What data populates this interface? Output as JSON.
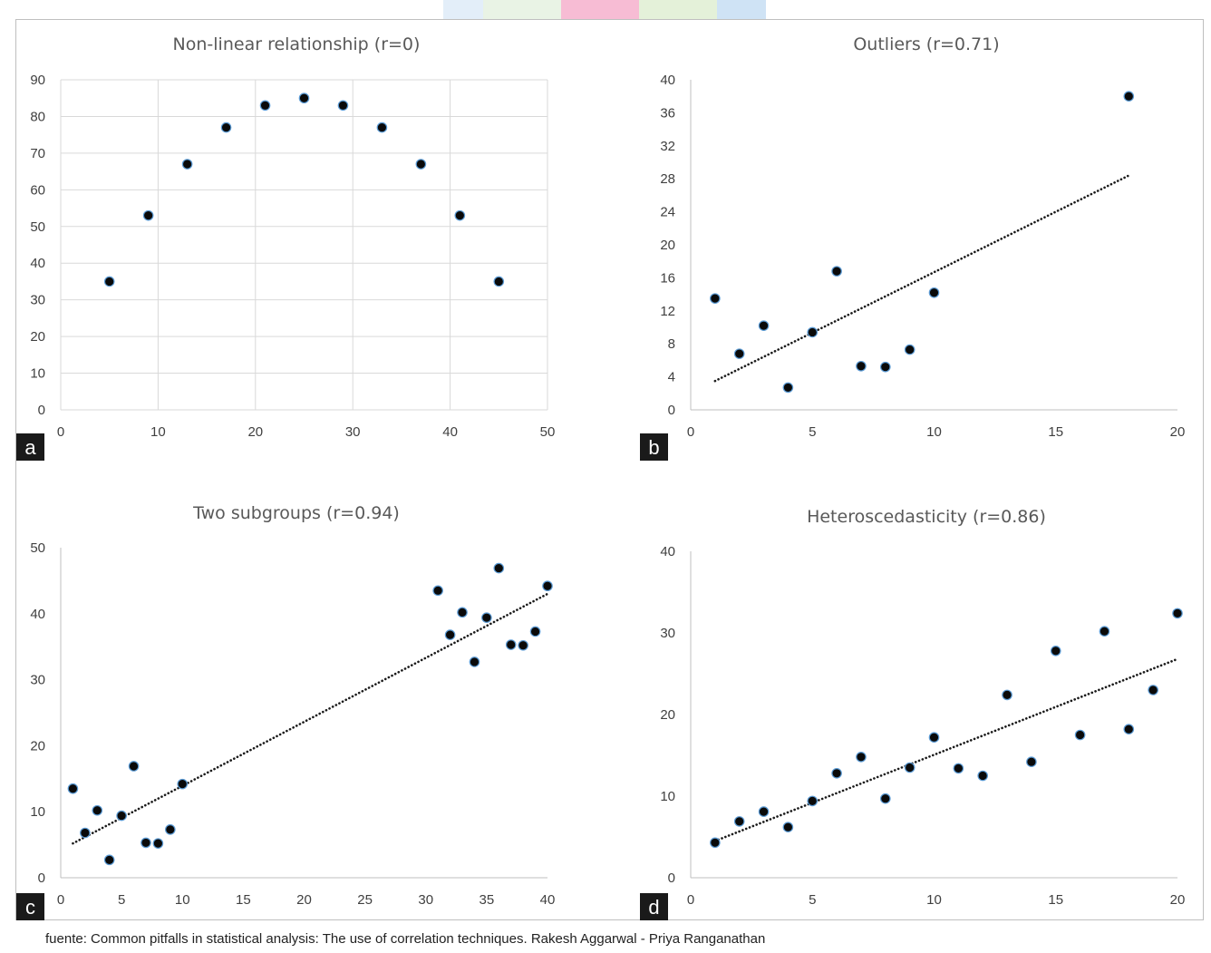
{
  "header_strip_colors": [
    "#e3eef9",
    "#e9f3e5",
    "#f7bcd4",
    "#e4f1d9",
    "#cfe3f5"
  ],
  "chart_data": [
    {
      "type": "scatter",
      "label": "a",
      "title": "Non-linear relationship (r=0)",
      "xlim": [
        0,
        50
      ],
      "ylim": [
        0,
        90
      ],
      "xticks": [
        0,
        10,
        20,
        30,
        40,
        50
      ],
      "yticks": [
        0,
        10,
        20,
        30,
        40,
        50,
        60,
        70,
        80,
        90
      ],
      "grid": true,
      "trendline": null,
      "points": [
        [
          5,
          35
        ],
        [
          9,
          53
        ],
        [
          13,
          67
        ],
        [
          17,
          77
        ],
        [
          21,
          83
        ],
        [
          25,
          85
        ],
        [
          29,
          83
        ],
        [
          33,
          77
        ],
        [
          37,
          67
        ],
        [
          41,
          53
        ],
        [
          45,
          35
        ]
      ]
    },
    {
      "type": "scatter",
      "label": "b",
      "title": "Outliers (r=0.71)",
      "xlim": [
        0,
        20
      ],
      "ylim": [
        0,
        40
      ],
      "xticks": [
        0,
        5,
        10,
        15,
        20
      ],
      "yticks": [
        0,
        4,
        8,
        12,
        16,
        20,
        24,
        28,
        32,
        36,
        40
      ],
      "grid": false,
      "trendline": {
        "style": "dotted",
        "x": [
          1,
          18
        ],
        "y": [
          3.5,
          28.4
        ]
      },
      "points": [
        [
          1,
          13.5
        ],
        [
          2,
          6.8
        ],
        [
          3,
          10.2
        ],
        [
          4,
          2.7
        ],
        [
          5,
          9.4
        ],
        [
          6,
          16.8
        ],
        [
          7,
          5.3
        ],
        [
          8,
          5.2
        ],
        [
          9,
          7.3
        ],
        [
          10,
          14.2
        ],
        [
          18,
          38
        ]
      ]
    },
    {
      "type": "scatter",
      "label": "c",
      "title": "Two subgroups (r=0.94)",
      "xlim": [
        0,
        40
      ],
      "ylim": [
        0,
        50
      ],
      "xticks": [
        0,
        5,
        10,
        15,
        20,
        25,
        30,
        35,
        40
      ],
      "yticks": [
        0,
        10,
        20,
        30,
        40,
        50
      ],
      "grid": false,
      "trendline": {
        "style": "dotted",
        "x": [
          1,
          40
        ],
        "y": [
          5.2,
          43
        ]
      },
      "points": [
        [
          1,
          13.5
        ],
        [
          2,
          6.8
        ],
        [
          3,
          10.2
        ],
        [
          4,
          2.7
        ],
        [
          5,
          9.4
        ],
        [
          6,
          16.9
        ],
        [
          7,
          5.3
        ],
        [
          8,
          5.2
        ],
        [
          9,
          7.3
        ],
        [
          10,
          14.2
        ],
        [
          31,
          43.5
        ],
        [
          32,
          36.8
        ],
        [
          33,
          40.2
        ],
        [
          34,
          32.7
        ],
        [
          35,
          39.4
        ],
        [
          36,
          46.9
        ],
        [
          37,
          35.3
        ],
        [
          38,
          35.2
        ],
        [
          39,
          37.3
        ],
        [
          40,
          44.2
        ]
      ]
    },
    {
      "type": "scatter",
      "label": "d",
      "title": "Heteroscedasticity (r=0.86)",
      "xlim": [
        0,
        20
      ],
      "ylim": [
        0,
        40
      ],
      "xticks": [
        0,
        5,
        10,
        15,
        20
      ],
      "yticks": [
        0,
        10,
        20,
        30,
        40
      ],
      "grid": false,
      "trendline": {
        "style": "dotted",
        "x": [
          1,
          20
        ],
        "y": [
          4.5,
          26.8
        ]
      },
      "points": [
        [
          1,
          4.3
        ],
        [
          2,
          6.9
        ],
        [
          3,
          8.1
        ],
        [
          4,
          6.2
        ],
        [
          5,
          9.4
        ],
        [
          6,
          12.8
        ],
        [
          7,
          14.8
        ],
        [
          8,
          9.7
        ],
        [
          9,
          13.5
        ],
        [
          10,
          17.2
        ],
        [
          11,
          13.4
        ],
        [
          12,
          12.5
        ],
        [
          13,
          22.4
        ],
        [
          14,
          14.2
        ],
        [
          15,
          27.8
        ],
        [
          16,
          17.5
        ],
        [
          17,
          30.2
        ],
        [
          18,
          18.2
        ],
        [
          19,
          23
        ],
        [
          20,
          32.4
        ]
      ]
    }
  ],
  "caption": "fuente: Common pitfalls in statistical analysis: The use of correlation techniques. Rakesh Aggarwal - Priya Ranganathan"
}
